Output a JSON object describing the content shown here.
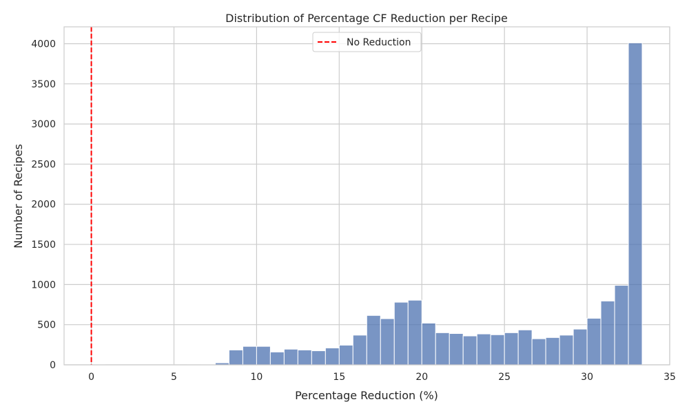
{
  "chart_data": {
    "type": "bar",
    "subtype": "histogram",
    "title": "Distribution of Percentage CF Reduction per Recipe",
    "xlabel": "Percentage Reduction (%)",
    "ylabel": "Number of Recipes",
    "xlim": [
      -1.65,
      35
    ],
    "ylim": [
      0,
      4210
    ],
    "xticks": [
      0,
      5,
      10,
      15,
      20,
      25,
      30,
      35
    ],
    "yticks": [
      0,
      500,
      1000,
      1500,
      2000,
      2500,
      3000,
      3500,
      4000
    ],
    "grid": true,
    "bar_color": "#4c72b0",
    "bin_edges": [
      0,
      0.833,
      1.667,
      2.5,
      3.333,
      4.167,
      5,
      5.833,
      6.667,
      7.5,
      8.333,
      9.167,
      10,
      10.833,
      11.667,
      12.5,
      13.333,
      14.167,
      15,
      15.833,
      16.667,
      17.5,
      18.333,
      19.167,
      20,
      20.833,
      21.667,
      22.5,
      23.333,
      24.167,
      25,
      25.833,
      26.667,
      27.5,
      28.333,
      29.167,
      30,
      30.833,
      31.667,
      32.5,
      33.333
    ],
    "counts": [
      2,
      0,
      0,
      0,
      0,
      0,
      1,
      2,
      5,
      25,
      185,
      230,
      230,
      160,
      195,
      185,
      175,
      210,
      245,
      370,
      615,
      575,
      780,
      805,
      520,
      400,
      390,
      360,
      385,
      375,
      400,
      435,
      325,
      340,
      370,
      445,
      580,
      795,
      990,
      4010
    ],
    "reference_line": {
      "x": 0,
      "label": "No Reduction",
      "color": "#ff0000",
      "style": "dashed"
    },
    "legend": {
      "position": "top-center",
      "entries": [
        "No Reduction"
      ]
    }
  }
}
